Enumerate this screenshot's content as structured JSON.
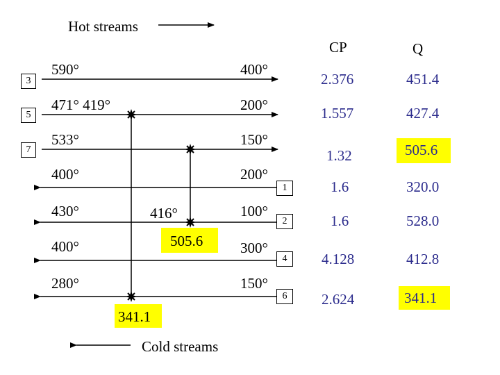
{
  "legend": {
    "hot_label": "Hot streams",
    "cold_label": "Cold streams"
  },
  "headers": {
    "cp": "CP",
    "q": "Q"
  },
  "hot_streams": [
    {
      "id": "3",
      "t_in": "590°",
      "t_out": "400°",
      "cp": "2.376",
      "q": "451.4"
    },
    {
      "id": "5",
      "t_in": "471° 419°",
      "t_out": "200°",
      "cp": "1.557",
      "q": "427.4"
    },
    {
      "id": "7",
      "t_in": "533°",
      "t_out": "150°",
      "cp": "1.32",
      "q": "505.6"
    }
  ],
  "cold_streams": [
    {
      "id": "1",
      "t_left": "400°",
      "t_right": "200°",
      "cp": "1.6",
      "q": "320.0"
    },
    {
      "id": "2",
      "t_left": "430°",
      "t_mid": "416°",
      "t_right": "100°",
      "cp": "1.6",
      "q": "528.0"
    },
    {
      "id": "4",
      "t_left": "400°",
      "t_right": "300°",
      "cp": "4.128",
      "q": "412.8"
    },
    {
      "id": "6",
      "t_left": "280°",
      "t_right": "150°",
      "cp": "2.624",
      "q": "341.1"
    }
  ],
  "exchanger_duties": {
    "match_7_2": "505.6",
    "match_5_6": "341.1"
  },
  "colors": {
    "line": "#000000",
    "number": "#2b2b8c",
    "highlight": "#ffff00"
  }
}
